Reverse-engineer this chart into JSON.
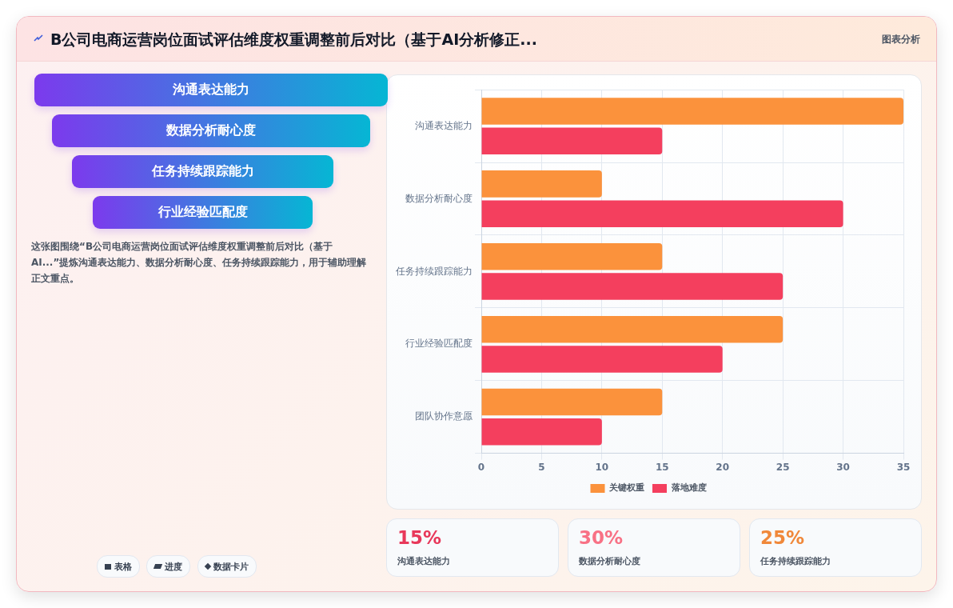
{
  "chart_data": {
    "type": "bar",
    "orientation": "horizontal",
    "title": "B公司电商运营岗位面试评估维度权重调整前后对比（基于AI分析修正...",
    "categories": [
      "沟通表达能力",
      "数据分析耐心度",
      "任务持续跟踪能力",
      "行业经验匹配度",
      "团队协作意愿"
    ],
    "series": [
      {
        "name": "关键权重",
        "color": "#fb923c",
        "values": [
          35,
          10,
          15,
          25,
          15
        ]
      },
      {
        "name": "落地难度",
        "color": "#f43f5e",
        "values": [
          15,
          30,
          25,
          20,
          10
        ]
      }
    ],
    "xlim": [
      0,
      35
    ],
    "xticks": [
      0,
      5,
      10,
      15,
      20,
      25,
      30,
      35
    ],
    "grid": true,
    "legend": "bottom",
    "annotations": [
      "图表分析",
      "沟通表达能力",
      "数据分析耐心度",
      "任务持续跟踪能力",
      "行业经验匹配度",
      "这张图围绕“B公司电商运营岗位面试评估维度权重调整前后对比（基于AI...”提炼沟通表达能力、数据分析耐心度、任务持续跟踪能力，用于辅助理解正文重点。",
      "表格",
      "进度",
      "数据卡片",
      "15%",
      "沟通表达能力",
      "30%",
      "数据分析耐心度",
      "25%",
      "任务持续跟踪能力"
    ]
  }
}
